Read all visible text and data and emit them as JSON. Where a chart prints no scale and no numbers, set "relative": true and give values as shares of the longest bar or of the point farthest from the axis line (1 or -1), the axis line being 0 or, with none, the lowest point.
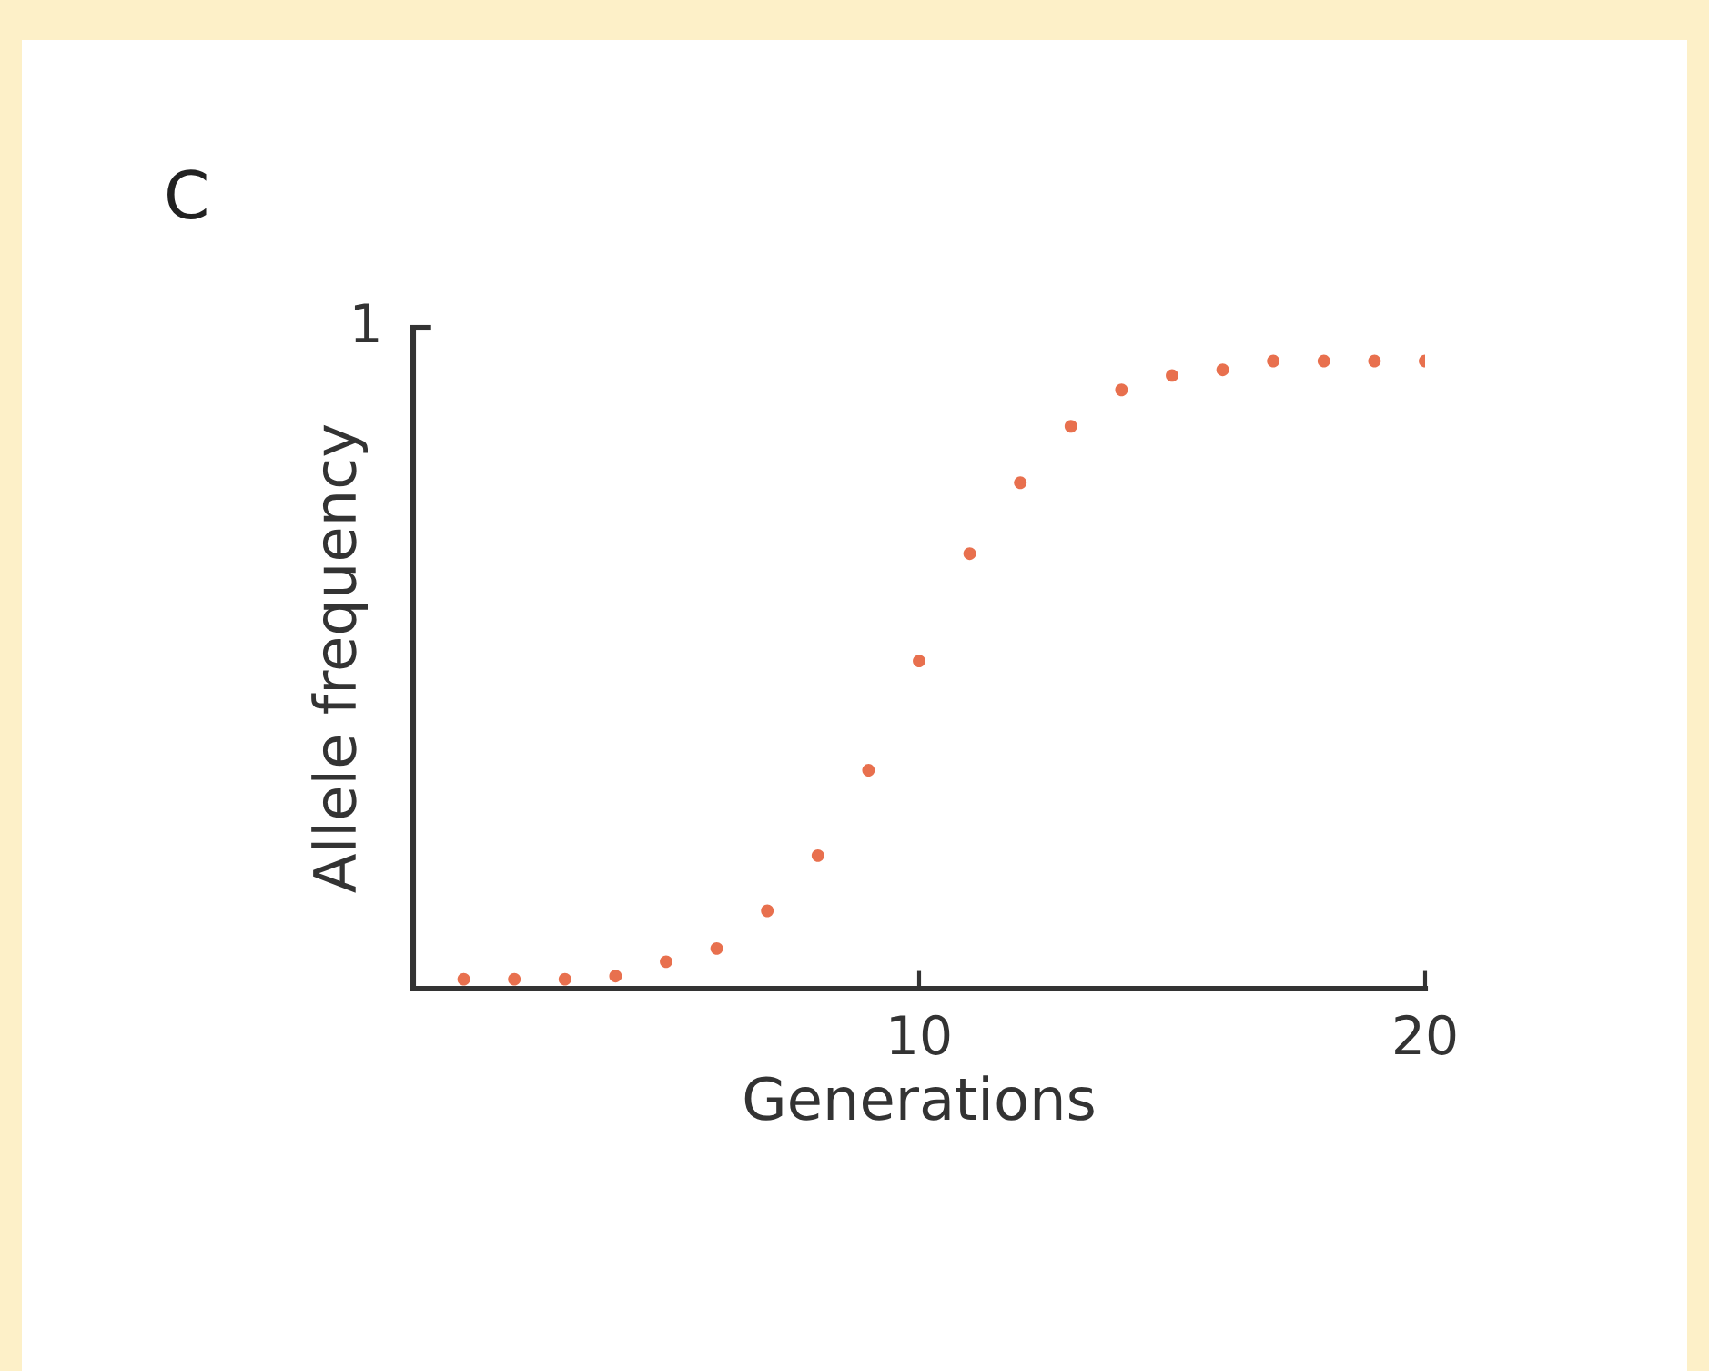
{
  "chart_data": {
    "type": "scatter",
    "title": "C",
    "xlabel": "Generations",
    "ylabel": "Allele frequency",
    "relative": true,
    "x": [
      1,
      2,
      3,
      4,
      5,
      6,
      7,
      8,
      9,
      10,
      11,
      12,
      13,
      14,
      15,
      16,
      17,
      18,
      19,
      20
    ],
    "values": [
      0.015,
      0.015,
      0.015,
      0.02,
      0.043,
      0.064,
      0.124,
      0.212,
      0.348,
      0.522,
      0.693,
      0.806,
      0.896,
      0.954,
      0.977,
      0.986,
      1,
      1,
      1,
      1
    ],
    "color": "#e8704e",
    "marker": "circle",
    "xlim": [
      0,
      20
    ],
    "xticks": [
      10,
      20
    ],
    "grid": false,
    "legend": false,
    "annotations": [
      "1"
    ]
  }
}
